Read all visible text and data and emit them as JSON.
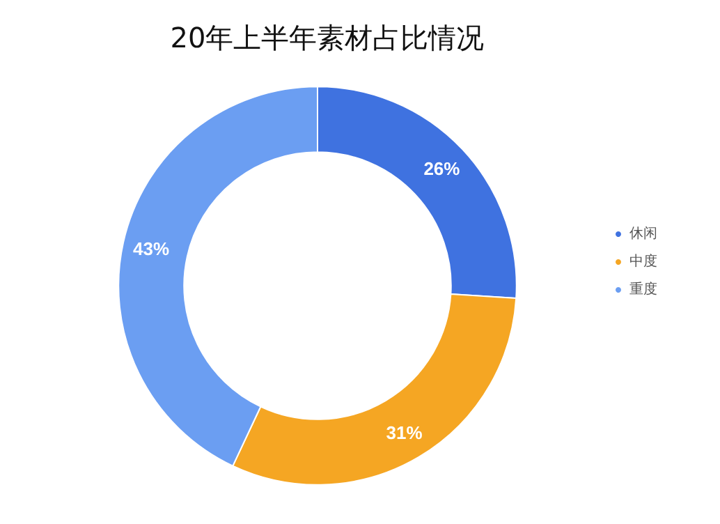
{
  "chart_data": {
    "type": "donut",
    "title": "20年上半年素材占比情况",
    "categories": [
      "休闲",
      "中度",
      "重度"
    ],
    "values": [
      26,
      31,
      43
    ],
    "colors": [
      "#3f72e0",
      "#f5a623",
      "#6b9ef2"
    ],
    "value_labels": [
      "26%",
      "31%",
      "43%"
    ],
    "legend": "right"
  }
}
